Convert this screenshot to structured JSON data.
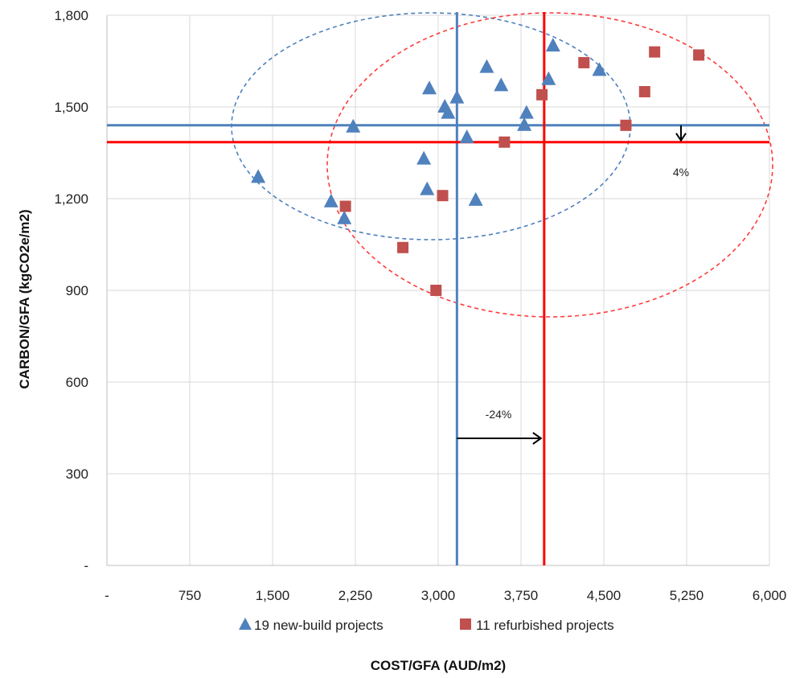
{
  "chart_data": {
    "type": "scatter",
    "title": "",
    "xlabel": "COST/GFA (AUD/m2)",
    "ylabel": "CARBON/GFA (kgCO2e/m2)",
    "xlim": [
      0,
      6000
    ],
    "ylim": [
      0,
      1800
    ],
    "x_ticks": [
      0,
      750,
      1500,
      2250,
      3000,
      3750,
      4500,
      5250,
      6000
    ],
    "x_tick_labels": [
      "-",
      "750",
      "1,500",
      "2,250",
      "3,000",
      "3,750",
      "4,500",
      "5,250",
      "6,000"
    ],
    "y_ticks": [
      0,
      300,
      600,
      900,
      1200,
      1500,
      1800
    ],
    "y_tick_labels": [
      "-",
      "300",
      "600",
      "900",
      "1,200",
      "1,500",
      "1,800"
    ],
    "grid": true,
    "legend_position": "bottom",
    "series": [
      {
        "name": "19 new-build projects",
        "marker": "triangle",
        "color": "#4f81bd",
        "points": [
          [
            1370,
            1270
          ],
          [
            2030,
            1190
          ],
          [
            2150,
            1135
          ],
          [
            2230,
            1435
          ],
          [
            2870,
            1330
          ],
          [
            2900,
            1230
          ],
          [
            2920,
            1560
          ],
          [
            3060,
            1500
          ],
          [
            3090,
            1480
          ],
          [
            3170,
            1530
          ],
          [
            3260,
            1400
          ],
          [
            3340,
            1195
          ],
          [
            3440,
            1630
          ],
          [
            3570,
            1570
          ],
          [
            3780,
            1440
          ],
          [
            3800,
            1480
          ],
          [
            4000,
            1590
          ],
          [
            4040,
            1700
          ],
          [
            4460,
            1620
          ]
        ]
      },
      {
        "name": "11 refurbished projects",
        "marker": "square",
        "color": "#c0504d",
        "points": [
          [
            2160,
            1175
          ],
          [
            2680,
            1040
          ],
          [
            2980,
            900
          ],
          [
            3040,
            1210
          ],
          [
            3600,
            1385
          ],
          [
            3940,
            1540
          ],
          [
            4320,
            1645
          ],
          [
            4700,
            1440
          ],
          [
            4870,
            1550
          ],
          [
            4960,
            1680
          ],
          [
            5360,
            1670
          ]
        ]
      }
    ],
    "reference_lines": [
      {
        "series": "19 new-build projects",
        "color": "#4f81bd",
        "x": 3170,
        "y": 1440
      },
      {
        "series": "11 refurbished projects",
        "color": "#ff0000",
        "x": 3960,
        "y": 1385
      }
    ],
    "annotations": [
      {
        "text": "-24%"
      },
      {
        "text": "4%"
      }
    ]
  }
}
